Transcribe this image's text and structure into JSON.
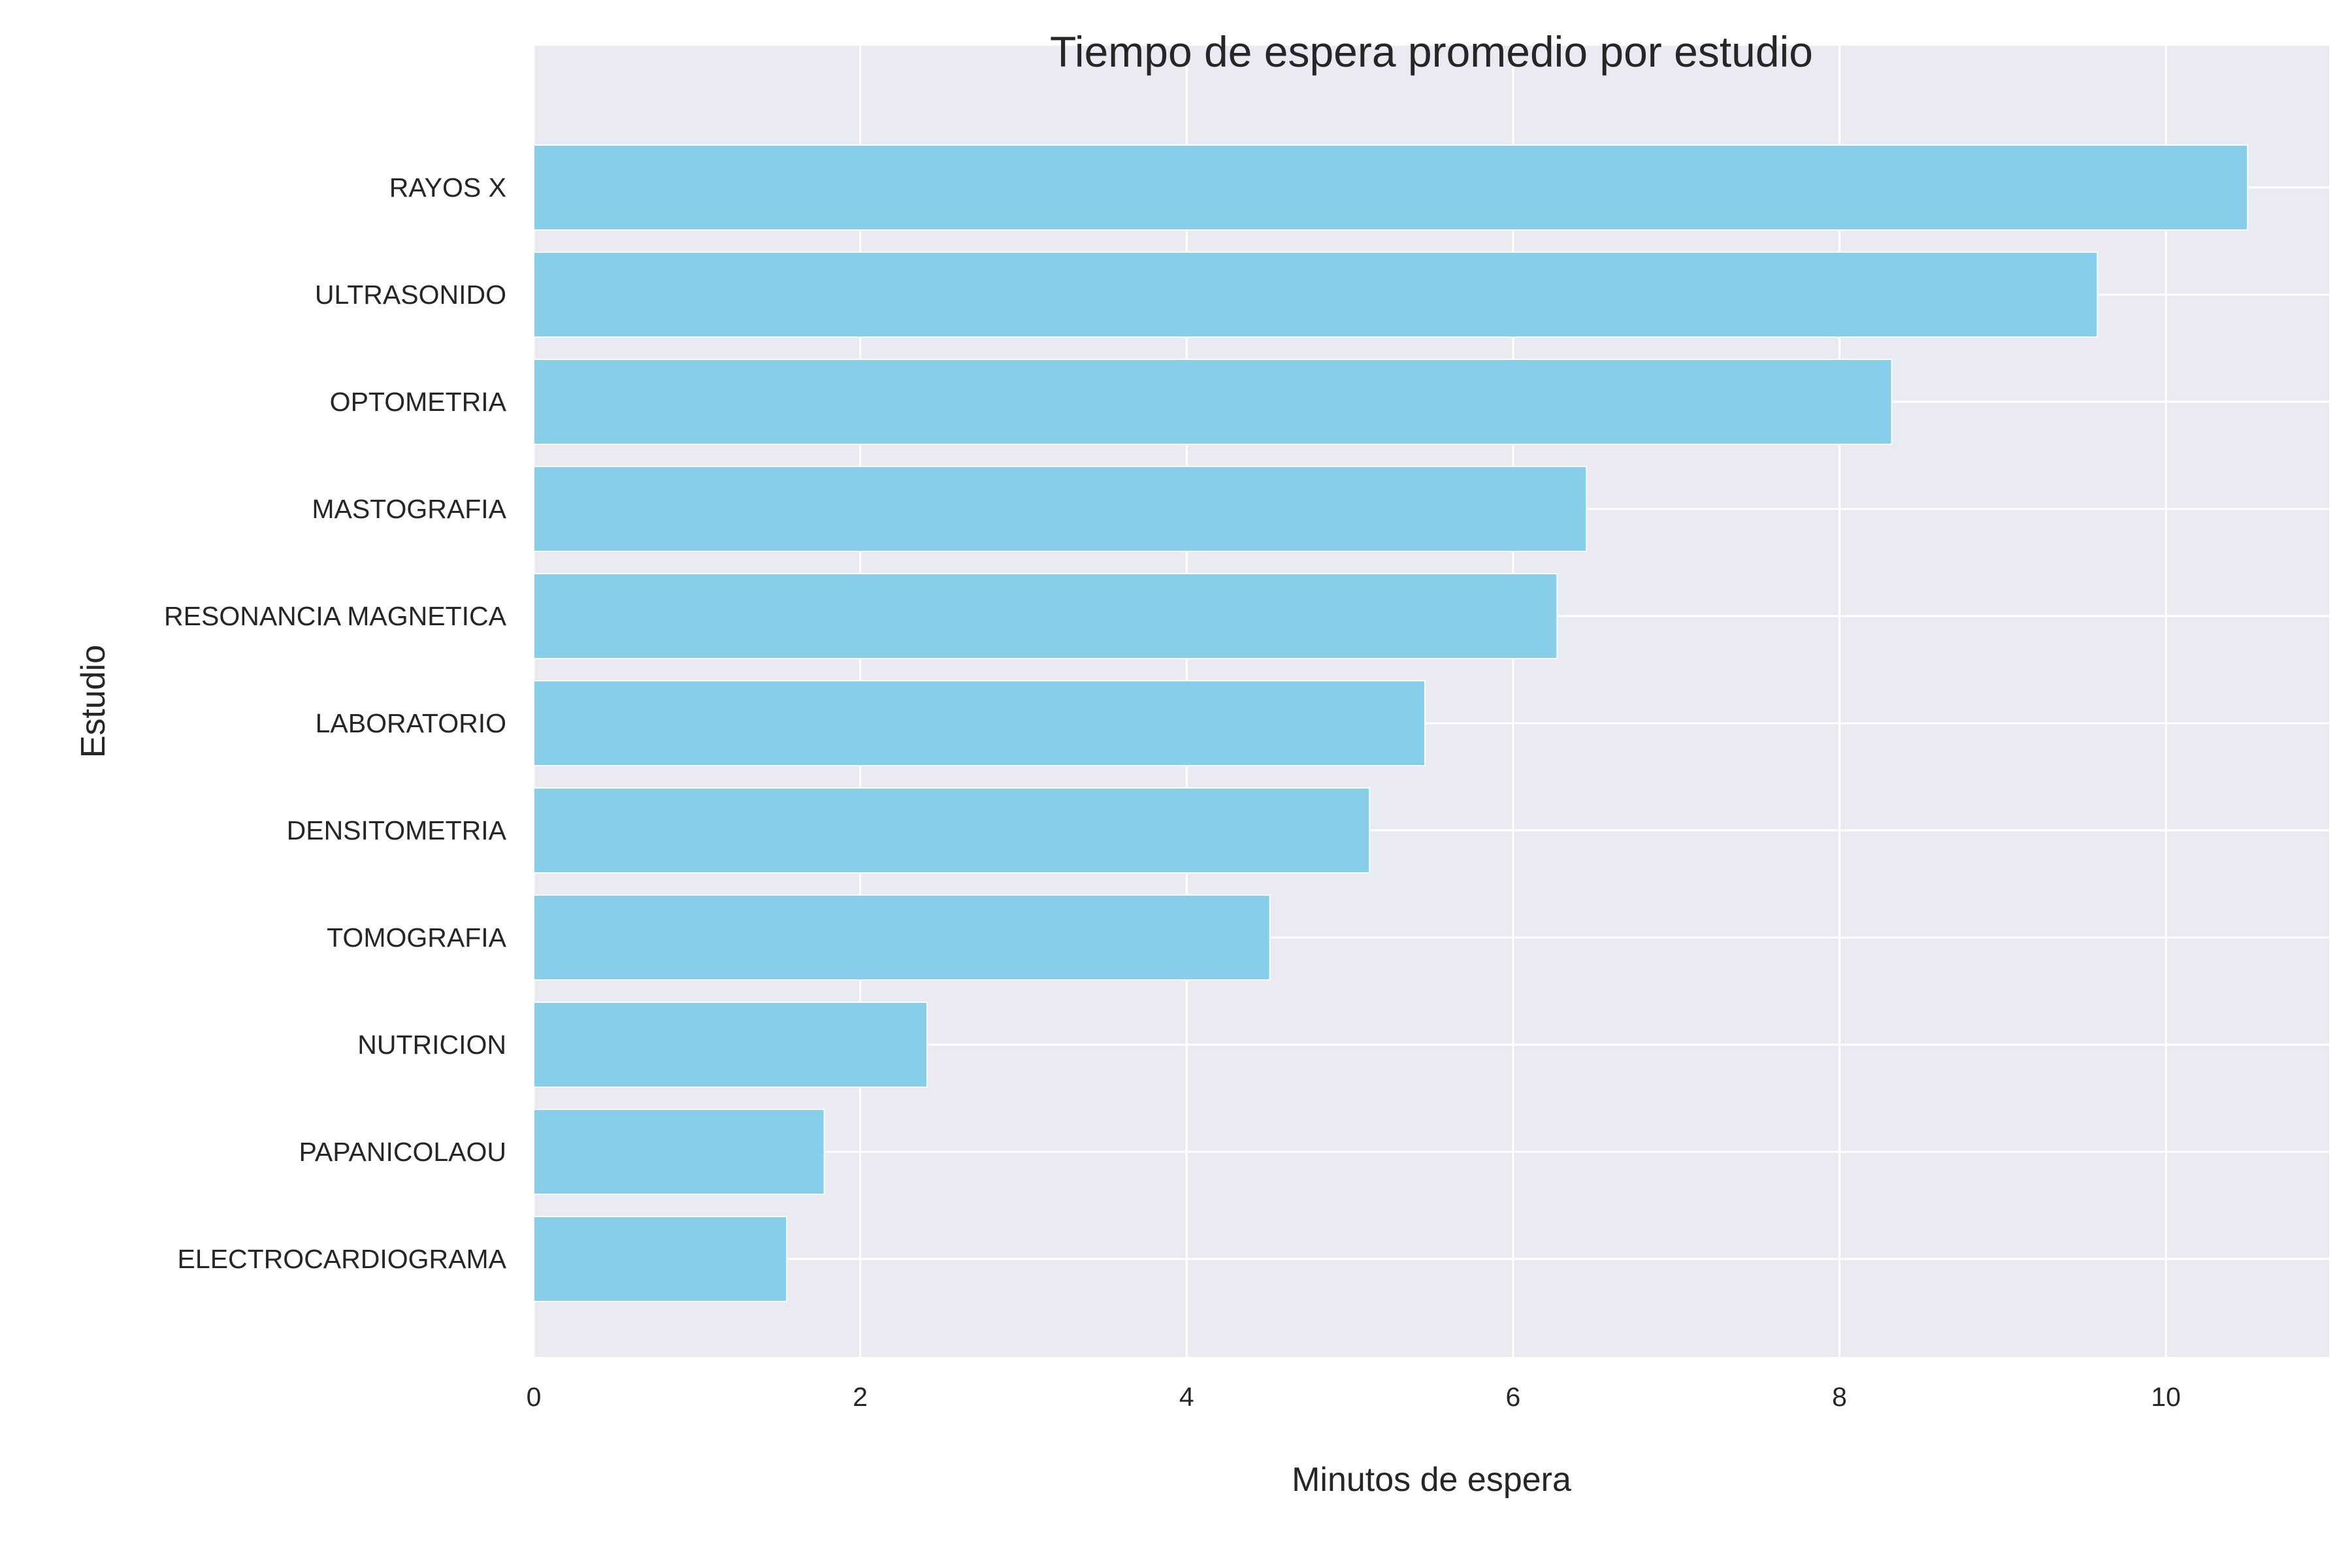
{
  "chart_data": {
    "type": "bar",
    "orientation": "horizontal",
    "title": "Tiempo de espera promedio por estudio",
    "xlabel": "Minutos de espera",
    "ylabel": "Estudio",
    "categories": [
      "RAYOS X",
      "ULTRASONIDO",
      "OPTOMETRIA",
      "MASTOGRAFIA",
      "RESONANCIA MAGNETICA",
      "LABORATORIO",
      "DENSITOMETRIA",
      "TOMOGRAFIA",
      "NUTRICION",
      "PAPANICOLAOU",
      "ELECTROCARDIOGRAMA"
    ],
    "values": [
      10.5,
      9.58,
      8.32,
      6.45,
      6.27,
      5.46,
      5.12,
      4.51,
      2.41,
      1.78,
      1.55
    ],
    "xlim": [
      0,
      11
    ],
    "xticks": [
      "0",
      "2",
      "4",
      "6",
      "8",
      "10"
    ],
    "grid": true,
    "colors": {
      "bar": "#87CEEB",
      "plot_background": "#EAEAF2",
      "grid": "#FFFFFF",
      "text": "#262626"
    }
  }
}
